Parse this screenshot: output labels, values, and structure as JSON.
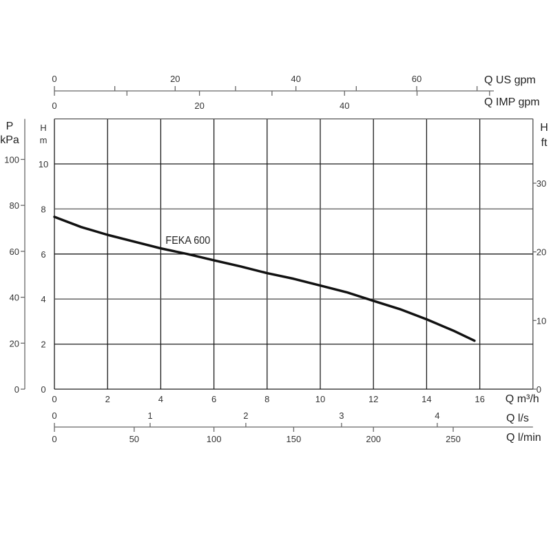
{
  "chart_data": {
    "type": "line",
    "series": [
      {
        "name": "FEKA 600",
        "x": [
          0,
          1,
          2,
          3,
          4,
          5,
          6,
          7,
          8,
          9,
          10,
          11,
          12,
          13,
          14,
          15,
          15.8
        ],
        "y": [
          7.65,
          7.2,
          6.85,
          6.55,
          6.25,
          6.0,
          5.72,
          5.45,
          5.15,
          4.9,
          4.6,
          4.3,
          3.92,
          3.55,
          3.1,
          2.6,
          2.15
        ]
      }
    ],
    "x_axis": {
      "label": "Q m³/h",
      "range": [
        0,
        18
      ],
      "ticks": [
        0,
        2,
        4,
        6,
        8,
        10,
        12,
        14,
        16
      ]
    },
    "y_axis": {
      "label_top": "H",
      "label_unit": "m",
      "range": [
        0,
        12
      ],
      "ticks": [
        0,
        2,
        4,
        6,
        8,
        10
      ]
    },
    "y_axis_left_outer": {
      "label_top": "P",
      "label_unit": "kPa",
      "ticks": [
        0,
        20,
        40,
        60,
        80,
        100
      ]
    },
    "y_axis_right": {
      "label_top": "H",
      "label_unit": "ft",
      "ticks": [
        0,
        10,
        20,
        30
      ]
    },
    "secondary_x_axes": [
      {
        "label": "Q US gpm",
        "labeled_ticks": [
          0,
          20,
          40,
          60
        ],
        "minor_step": 10,
        "position": "top"
      },
      {
        "label": "Q IMP gpm",
        "labeled_ticks": [
          0,
          20,
          40
        ],
        "minor_step": 10,
        "position": "top"
      },
      {
        "label": "Q l/s",
        "labeled_ticks": [
          0,
          1,
          2,
          3,
          4
        ],
        "position": "bottom"
      },
      {
        "label": "Q l/min",
        "labeled_ticks": [
          0,
          50,
          100,
          150,
          200,
          250
        ],
        "position": "bottom"
      }
    ],
    "grid": true,
    "colors": {
      "curve": "#111111",
      "grid": "#1a1a1a",
      "axis": "#666666"
    }
  }
}
